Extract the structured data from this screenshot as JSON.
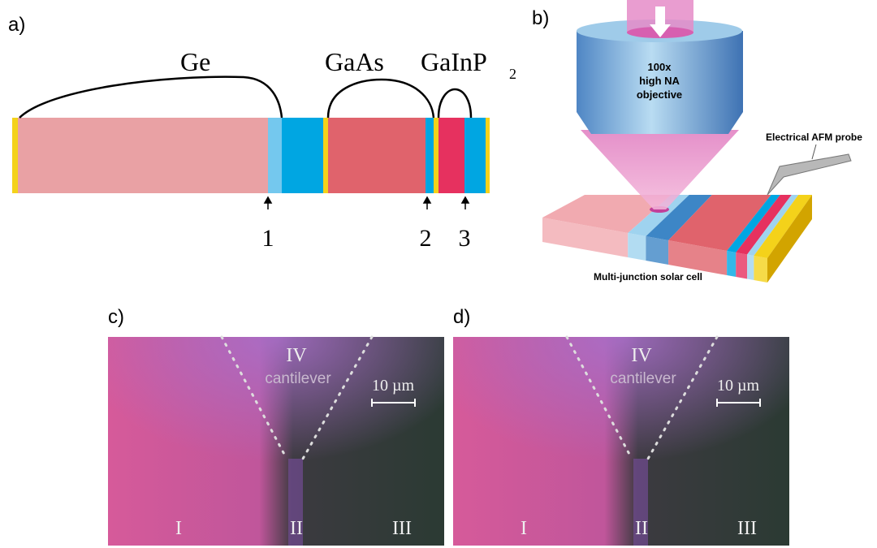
{
  "panels": [
    {
      "label": "a)",
      "layers": [
        "Ge",
        "GaAs",
        "GaInP"
      ],
      "subscript": "2",
      "markers": [
        "1",
        "2",
        "3"
      ]
    },
    {
      "label": "b)",
      "objective": [
        "100x",
        "high NA",
        "objective"
      ],
      "probe": "Electrical AFM probe",
      "sample": "Multi-junction solar cell"
    },
    {
      "label": "c)",
      "regions": [
        "I",
        "II",
        "III",
        "IV"
      ],
      "cantilever": "cantilever",
      "scale": "10 µm"
    },
    {
      "label": "d)",
      "regions": [
        "I",
        "II",
        "III",
        "IV"
      ],
      "cantilever": "cantilever",
      "scale": "10 µm"
    }
  ]
}
